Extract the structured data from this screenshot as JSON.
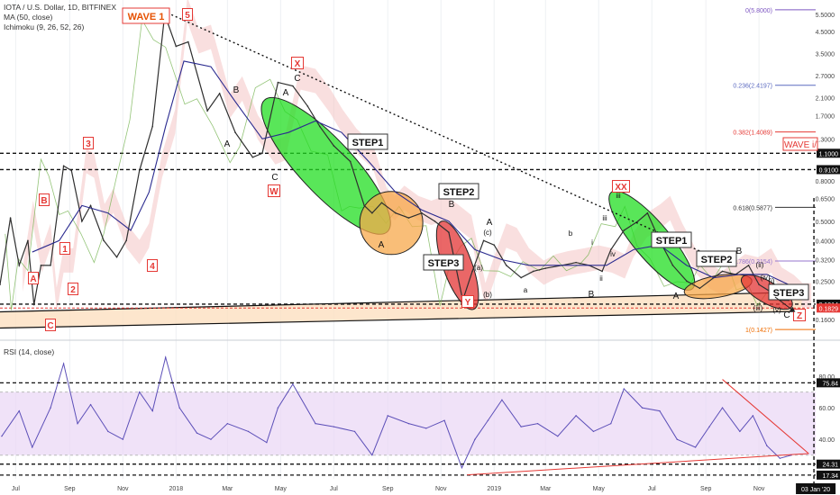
{
  "header": {
    "symbol_line": "IOTA / U.S. Dollar, 1D, BITFINEX",
    "ma_line": "MA (50, close)",
    "ichimoku_line": "Ichimoku (9, 26, 52, 26)",
    "rsi_line": "RSI (14, close)"
  },
  "colors": {
    "price": "#2f2f2f",
    "ma": "#2a2a8f",
    "cloud": "#f4c4c4",
    "lagging": "#6fb04a",
    "rsi": "#5c4fb8",
    "rsi_band": "#e9d5f5",
    "alert_red": "#e53935",
    "green_zone": "#22dd22",
    "orange_zone": "#f7a84b",
    "red_zone": "#e33434",
    "support_band": "#fde0c0"
  },
  "chart_data": [
    {
      "type": "line",
      "panel": "price",
      "scale": "log",
      "x_range": [
        "2017-06-13",
        "2020-01-05"
      ],
      "ylim": [
        0.13,
        6.5
      ],
      "x_tick_labels": [
        "Jul",
        "Sep",
        "Nov",
        "2018",
        "Mar",
        "May",
        "Jul",
        "Sep",
        "Nov",
        "2019",
        "Mar",
        "May",
        "Jul",
        "Sep",
        "Nov"
      ],
      "x_tick_dates": [
        "2017-07-01",
        "2017-09-01",
        "2017-11-01",
        "2018-01-01",
        "2018-03-01",
        "2018-05-01",
        "2018-07-01",
        "2018-09-01",
        "2018-11-01",
        "2019-01-01",
        "2019-03-01",
        "2019-05-01",
        "2019-07-01",
        "2019-09-01",
        "2019-11-01"
      ],
      "y_tick_values": [
        5.5,
        4.5,
        3.5,
        2.7,
        2.1,
        1.7,
        1.3,
        0.8,
        0.65,
        0.5,
        0.4,
        0.32,
        0.25,
        0.16
      ],
      "y_tick_labels": [
        "5.5000",
        "4.5000",
        "3.5000",
        "2.7000",
        "2.1000",
        "1.7000",
        "1.3000",
        "0.8000",
        "0.6500",
        "0.5000",
        "0.4000",
        "0.3200",
        "0.2500",
        "0.1600"
      ],
      "series": [
        {
          "kind": "price",
          "x": [
            "2017-06-13",
            "2017-06-25",
            "2017-07-05",
            "2017-07-15",
            "2017-07-22",
            "2017-07-30",
            "2017-08-10",
            "2017-08-25",
            "2017-09-03",
            "2017-09-15",
            "2017-09-25",
            "2017-10-10",
            "2017-10-25",
            "2017-11-05",
            "2017-11-20",
            "2017-12-05",
            "2017-12-19",
            "2018-01-01",
            "2018-01-15",
            "2018-02-06",
            "2018-02-20",
            "2018-03-10",
            "2018-03-30",
            "2018-04-10",
            "2018-04-28",
            "2018-05-15",
            "2018-06-01",
            "2018-06-15",
            "2018-07-01",
            "2018-07-20",
            "2018-08-05",
            "2018-08-14",
            "2018-08-25",
            "2018-09-10",
            "2018-09-25",
            "2018-10-10",
            "2018-10-25",
            "2018-11-10",
            "2018-11-26",
            "2018-12-07",
            "2018-12-20",
            "2019-01-01",
            "2019-01-15",
            "2019-02-01",
            "2019-02-15",
            "2019-03-01",
            "2019-03-20",
            "2019-04-05",
            "2019-04-20",
            "2019-05-05",
            "2019-05-15",
            "2019-05-30",
            "2019-06-15",
            "2019-06-26",
            "2019-07-10",
            "2019-07-25",
            "2019-08-10",
            "2019-08-25",
            "2019-09-10",
            "2019-09-20",
            "2019-10-05",
            "2019-10-20",
            "2019-11-01",
            "2019-11-15",
            "2019-11-25",
            "2019-12-05"
          ],
          "y": [
            0.24,
            0.52,
            0.3,
            0.4,
            0.19,
            0.3,
            0.3,
            0.95,
            0.9,
            0.5,
            0.6,
            0.4,
            0.33,
            0.4,
            0.9,
            1.5,
            5.5,
            3.8,
            4.0,
            1.8,
            2.2,
            1.4,
            1.05,
            1.1,
            2.5,
            2.4,
            1.9,
            1.5,
            1.2,
            1.0,
            0.6,
            0.55,
            0.62,
            0.55,
            0.52,
            0.55,
            0.5,
            0.44,
            0.2,
            0.28,
            0.4,
            0.38,
            0.3,
            0.26,
            0.28,
            0.29,
            0.3,
            0.31,
            0.3,
            0.28,
            0.36,
            0.45,
            0.5,
            0.55,
            0.4,
            0.3,
            0.25,
            0.23,
            0.26,
            0.28,
            0.27,
            0.3,
            0.24,
            0.22,
            0.2,
            0.2
          ]
        },
        {
          "kind": "ma",
          "name": "MA (50, close)",
          "x": [
            "2017-07-20",
            "2017-08-20",
            "2017-09-15",
            "2017-10-15",
            "2017-11-10",
            "2017-12-01",
            "2017-12-20",
            "2018-01-10",
            "2018-02-10",
            "2018-03-10",
            "2018-04-10",
            "2018-05-10",
            "2018-06-10",
            "2018-07-10",
            "2018-08-10",
            "2018-09-10",
            "2018-10-10",
            "2018-11-10",
            "2018-12-10",
            "2019-01-10",
            "2019-02-10",
            "2019-03-10",
            "2019-04-10",
            "2019-05-10",
            "2019-06-10",
            "2019-07-10",
            "2019-08-10",
            "2019-09-10",
            "2019-10-10",
            "2019-11-10",
            "2019-12-05"
          ],
          "y": [
            0.35,
            0.4,
            0.6,
            0.55,
            0.45,
            0.7,
            1.5,
            3.2,
            3.0,
            2.0,
            1.3,
            1.4,
            1.6,
            1.4,
            1.0,
            0.7,
            0.57,
            0.5,
            0.36,
            0.32,
            0.3,
            0.3,
            0.3,
            0.3,
            0.36,
            0.38,
            0.3,
            0.26,
            0.27,
            0.27,
            0.24
          ]
        }
      ],
      "horizontal_lines": [
        {
          "value": 1.1,
          "label": "1.1000",
          "style": "dashed"
        },
        {
          "value": 0.91,
          "label": "0.9100",
          "style": "dashed"
        },
        {
          "value": 0.1914,
          "label": "0.1914",
          "style": "dashed"
        },
        {
          "value": 0.1829,
          "label": "0.1829",
          "style": "dashed-red"
        }
      ],
      "fib_levels": [
        {
          "label": "0(5.8000)",
          "value": 5.8,
          "color": "#7e57c2"
        },
        {
          "label": "0.236(2.4197)",
          "value": 2.4197,
          "color": "#5c6bc0"
        },
        {
          "label": "0.382(1.4089)",
          "value": 1.4089,
          "color": "#e53935"
        },
        {
          "label": "0.618(0.5877)",
          "value": 0.5877,
          "color": "#333333"
        },
        {
          "label": "0.786(0.3154)",
          "value": 0.3154,
          "color": "#9575cd"
        },
        {
          "label": "1(0.1427)",
          "value": 0.1427,
          "color": "#ef6c00"
        }
      ],
      "wave_labels": {
        "wave1": "WAVE 1",
        "wave_i": "WAVE i/",
        "step1": "STEP1",
        "step2": "STEP2",
        "step3": "STEP3",
        "five": "5",
        "x": "X",
        "w": "W",
        "y": "Y",
        "xx": "XX",
        "z": "Z",
        "one": "1",
        "two": "2",
        "three": "3",
        "four": "4",
        "b_box": "B",
        "c_box": "C",
        "a": "A",
        "b": "B",
        "c": "C",
        "a_lc": "a",
        "b_lc": "b",
        "c_paren": "(c)",
        "i_lc": "i",
        "ii_lc": "ii",
        "iii_lc": "iii",
        "iv_lc": "iv",
        "a_paren": "(a)",
        "b_paren": "(b)",
        "iii_paren": "(iii)",
        "iv_paren": "(iv)",
        "v_paren": "(v)",
        "ii_paren": "(ii)",
        "i_paren": "(i)"
      }
    },
    {
      "type": "line",
      "panel": "rsi",
      "name": "RSI (14, close)",
      "x_range": [
        "2017-06-13",
        "2020-01-05"
      ],
      "ylim": [
        15,
        100
      ],
      "band": [
        30,
        70
      ],
      "y_tick_values": [
        80,
        60,
        40
      ],
      "y_tick_labels": [
        "80.00",
        "60.00",
        "40.00"
      ],
      "levels": [
        {
          "value": 75.84,
          "label": "75.84"
        },
        {
          "value": 24.31,
          "label": "24.31"
        },
        {
          "value": 17.34,
          "label": "17.34"
        }
      ],
      "x": [
        "2017-06-15",
        "2017-07-05",
        "2017-07-20",
        "2017-08-10",
        "2017-08-25",
        "2017-09-10",
        "2017-09-25",
        "2017-10-15",
        "2017-11-01",
        "2017-11-20",
        "2017-12-05",
        "2017-12-20",
        "2018-01-05",
        "2018-01-25",
        "2018-02-10",
        "2018-03-01",
        "2018-03-25",
        "2018-04-15",
        "2018-04-28",
        "2018-05-15",
        "2018-06-10",
        "2018-07-01",
        "2018-07-25",
        "2018-08-14",
        "2018-09-01",
        "2018-09-25",
        "2018-10-15",
        "2018-11-05",
        "2018-11-25",
        "2018-12-10",
        "2018-12-25",
        "2019-01-10",
        "2019-02-01",
        "2019-02-20",
        "2019-03-15",
        "2019-04-05",
        "2019-04-25",
        "2019-05-15",
        "2019-05-30",
        "2019-06-20",
        "2019-07-10",
        "2019-07-30",
        "2019-08-20",
        "2019-09-05",
        "2019-09-20",
        "2019-10-10",
        "2019-10-25",
        "2019-11-10",
        "2019-11-25",
        "2019-12-08"
      ],
      "y": [
        42,
        58,
        35,
        60,
        88,
        50,
        62,
        45,
        40,
        70,
        58,
        92,
        60,
        44,
        40,
        50,
        45,
        38,
        60,
        75,
        50,
        48,
        45,
        30,
        55,
        50,
        47,
        52,
        22,
        40,
        52,
        65,
        48,
        50,
        42,
        55,
        45,
        50,
        72,
        60,
        58,
        40,
        35,
        48,
        60,
        45,
        55,
        36,
        28,
        30
      ]
    }
  ],
  "axes": {
    "end_date_label": "03 Jan '20"
  }
}
